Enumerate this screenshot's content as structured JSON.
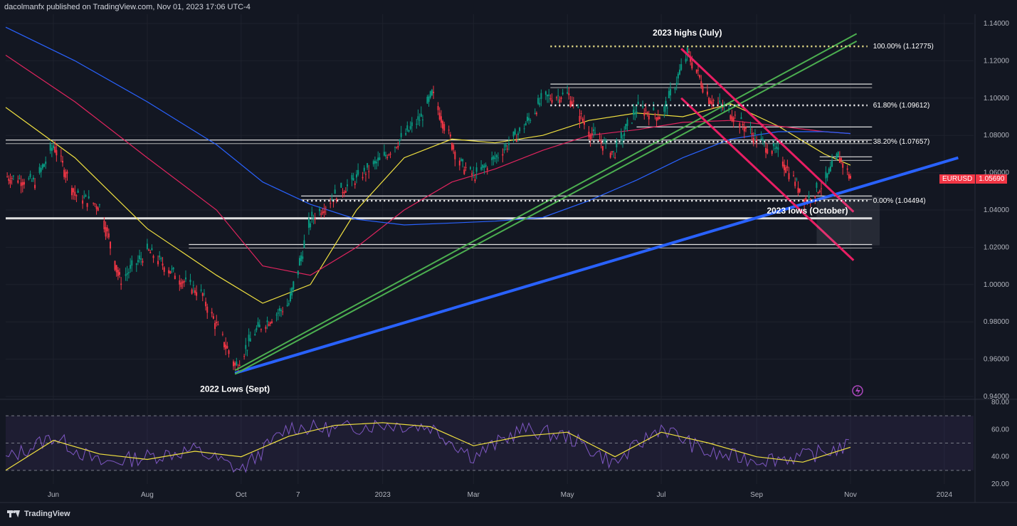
{
  "header": {
    "published_by": "dacolmanfx published on TradingView.com, Nov 01, 2023 17:06 UTC-4"
  },
  "footer": {
    "brand": "TradingView"
  },
  "symbol_tag": {
    "symbol": "EURUSD",
    "last_price": "1.05690"
  },
  "colors": {
    "background": "#131722",
    "candle_up": "#089981",
    "candle_down": "#f23645",
    "ema_fast": "#f0e040",
    "ema_mid": "#e0245e",
    "ema_slow": "#2962ff",
    "trendline_blue": "#2962ff",
    "trendline_green": "#4caf50",
    "channel_red": "#e91e63",
    "rsi_line": "#7e57c2",
    "rsi_ma": "#f0e040"
  },
  "chart_data": [
    {
      "type": "line",
      "title": "",
      "xlabel": "",
      "ylabel": "",
      "ylim": [
        0.94,
        1.14
      ],
      "y_ticks": [
        "1.14000",
        "1.12000",
        "1.10000",
        "1.08000",
        "1.06000",
        "1.04000",
        "1.02000",
        "1.00000",
        "0.98000",
        "0.96000",
        "0.94000"
      ],
      "x_ticks": [
        "Jun",
        "Aug",
        "Oct",
        "7",
        "2023",
        "Mar",
        "May",
        "Jul",
        "Sep",
        "Nov",
        "2024"
      ],
      "x_tick_dates": [
        "2022-06-01",
        "2022-08-01",
        "2022-10-01",
        "2022-11-07",
        "2023-01-01",
        "2023-03-01",
        "2023-05-01",
        "2023-07-01",
        "2023-09-01",
        "2023-11-01",
        "2024-01-01"
      ],
      "series": [
        {
          "name": "EURUSD",
          "x": [
            "2022-05-01",
            "2022-05-20",
            "2022-06-01",
            "2022-06-15",
            "2022-07-01",
            "2022-07-14",
            "2022-08-01",
            "2022-08-22",
            "2022-09-05",
            "2022-09-27",
            "2022-10-10",
            "2022-11-01",
            "2022-11-15",
            "2022-12-01",
            "2023-01-01",
            "2023-01-26",
            "2023-02-02",
            "2023-02-20",
            "2023-03-01",
            "2023-03-15",
            "2023-04-01",
            "2023-04-15",
            "2023-05-01",
            "2023-05-15",
            "2023-05-31",
            "2023-06-15",
            "2023-07-01",
            "2023-07-18",
            "2023-08-01",
            "2023-08-15",
            "2023-09-01",
            "2023-09-15",
            "2023-10-03",
            "2023-10-15",
            "2023-10-24",
            "2023-11-01"
          ],
          "values": [
            1.058,
            1.055,
            1.075,
            1.048,
            1.042,
            1.002,
            1.018,
            1.003,
            0.995,
            0.956,
            0.975,
            0.99,
            1.035,
            1.048,
            1.068,
            1.09,
            1.102,
            1.065,
            1.058,
            1.068,
            1.083,
            1.1,
            1.102,
            1.082,
            1.07,
            1.095,
            1.09,
            1.124,
            1.1,
            1.092,
            1.078,
            1.07,
            1.045,
            1.055,
            1.069,
            1.0569
          ]
        }
      ],
      "moving_averages": [
        {
          "x": [
            "2022-05-01",
            "2022-06-15",
            "2022-08-01",
            "2022-09-15",
            "2022-10-15",
            "2022-11-15",
            "2022-12-15",
            "2023-01-15",
            "2023-02-15",
            "2023-03-15",
            "2023-04-15",
            "2023-05-15",
            "2023-06-15",
            "2023-07-15",
            "2023-08-15",
            "2023-09-15",
            "2023-10-15",
            "2023-11-01"
          ],
          "values": [
            1.095,
            1.068,
            1.03,
            1.005,
            0.99,
            1.0,
            1.04,
            1.068,
            1.078,
            1.076,
            1.08,
            1.088,
            1.092,
            1.09,
            1.097,
            1.085,
            1.07,
            1.064
          ]
        },
        {
          "x": [
            "2022-05-01",
            "2022-06-15",
            "2022-08-01",
            "2022-09-15",
            "2022-10-15",
            "2022-11-15",
            "2022-12-15",
            "2023-01-15",
            "2023-02-15",
            "2023-03-15",
            "2023-04-15",
            "2023-05-15",
            "2023-06-15",
            "2023-07-15",
            "2023-08-15",
            "2023-09-15",
            "2023-10-15",
            "2023-11-01"
          ],
          "values": [
            1.123,
            1.098,
            1.068,
            1.04,
            1.01,
            1.005,
            1.02,
            1.04,
            1.055,
            1.062,
            1.072,
            1.08,
            1.083,
            1.087,
            1.088,
            1.085,
            1.082,
            1.081
          ]
        },
        {
          "x": [
            "2022-05-01",
            "2022-06-15",
            "2022-08-01",
            "2022-09-15",
            "2022-10-15",
            "2022-11-15",
            "2022-12-15",
            "2023-01-15",
            "2023-02-15",
            "2023-03-15",
            "2023-04-15",
            "2023-05-15",
            "2023-06-15",
            "2023-07-15",
            "2023-08-15",
            "2023-09-15",
            "2023-10-15",
            "2023-11-01"
          ],
          "values": [
            1.138,
            1.12,
            1.098,
            1.075,
            1.055,
            1.043,
            1.035,
            1.032,
            1.033,
            1.034,
            1.036,
            1.045,
            1.056,
            1.068,
            1.078,
            1.082,
            1.082,
            1.081
          ]
        }
      ],
      "annotations": [
        {
          "text": "2023 highs (July)"
        },
        {
          "text": "2022 Lows (Sept)"
        },
        {
          "text": "2023 lows (October)"
        }
      ],
      "fibonacci": [
        {
          "label": "100.00% (1.12775)",
          "level": 1.12775
        },
        {
          "label": "61.80% (1.09612)",
          "level": 1.09612
        },
        {
          "label": "38.20% (1.07657)",
          "level": 1.07657
        },
        {
          "label": "0.00% (1.04494)",
          "level": 1.04494
        }
      ],
      "horizontal_levels": [
        1.1075,
        1.0775,
        1.0845,
        1.0685,
        1.0475,
        1.0355,
        1.0215
      ],
      "legend": "none",
      "grid": true
    },
    {
      "type": "line",
      "title": "",
      "ylim": [
        20,
        80
      ],
      "y_ticks": [
        "80.00",
        "60.00",
        "40.00",
        "20.00"
      ],
      "bands": [
        70,
        50,
        30
      ],
      "series": [
        {
          "x": [
            "2022-05-01",
            "2022-06-01",
            "2022-07-01",
            "2022-08-01",
            "2022-09-01",
            "2022-10-01",
            "2022-11-01",
            "2022-12-01",
            "2023-01-01",
            "2023-02-01",
            "2023-03-01",
            "2023-04-01",
            "2023-05-01",
            "2023-06-01",
            "2023-07-01",
            "2023-08-01",
            "2023-09-01",
            "2023-10-01",
            "2023-11-01"
          ],
          "values": [
            38,
            55,
            35,
            40,
            45,
            30,
            62,
            60,
            64,
            62,
            40,
            60,
            55,
            35,
            62,
            42,
            38,
            40,
            48
          ]
        },
        {
          "x": [
            "2022-05-01",
            "2022-06-01",
            "2022-07-01",
            "2022-08-01",
            "2022-09-01",
            "2022-10-01",
            "2022-11-01",
            "2022-12-01",
            "2023-01-01",
            "2023-02-01",
            "2023-03-01",
            "2023-04-01",
            "2023-05-01",
            "2023-06-01",
            "2023-07-01",
            "2023-08-01",
            "2023-09-01",
            "2023-10-01",
            "2023-11-01"
          ],
          "values": [
            30,
            52,
            42,
            38,
            44,
            40,
            55,
            63,
            65,
            62,
            48,
            55,
            58,
            40,
            58,
            50,
            40,
            36,
            47
          ]
        }
      ],
      "legend": "none",
      "grid": true
    }
  ]
}
